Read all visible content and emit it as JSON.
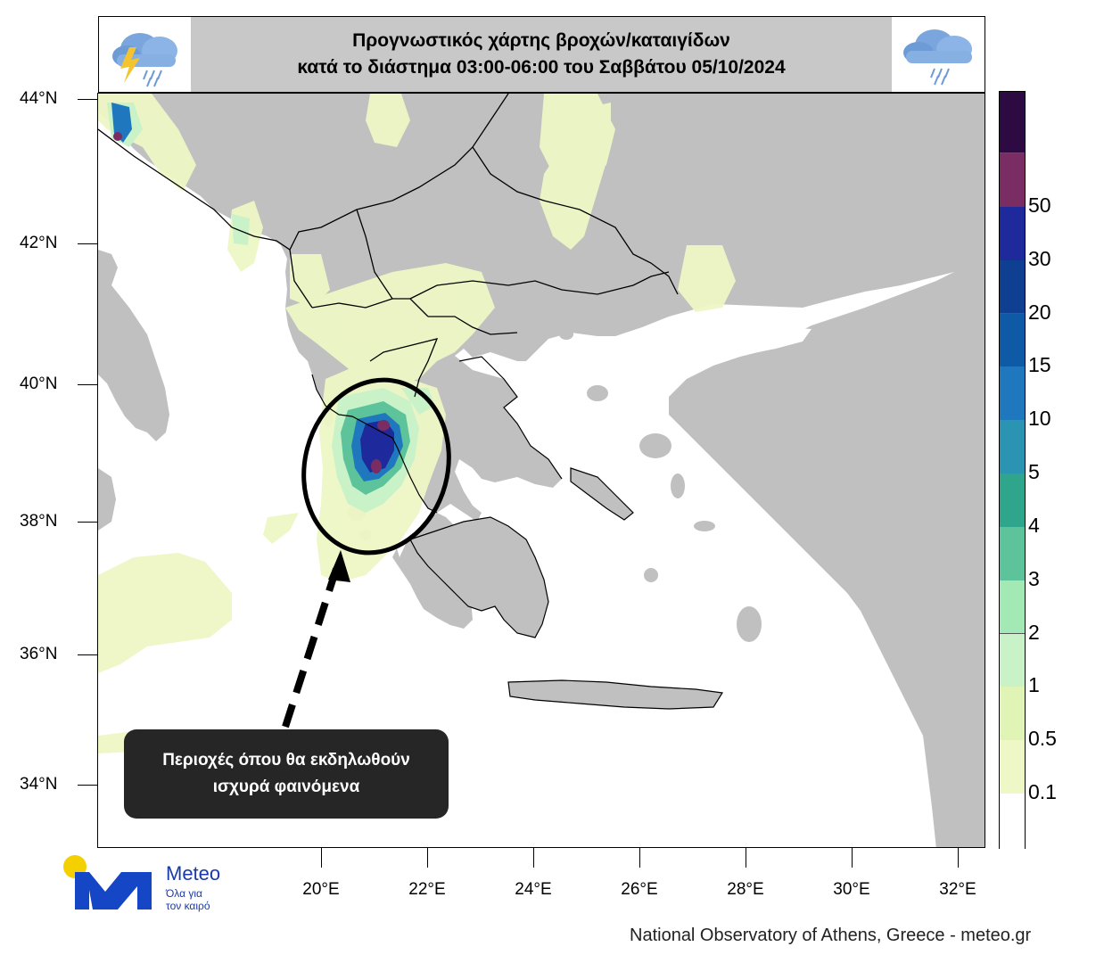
{
  "title": {
    "line1": "Προγνωστικός χάρτης βροχών/καταιγίδων",
    "line2": "κατά το διάστημα 03:00-06:00 του Σαββάτου 05/10/2024"
  },
  "icons": {
    "left": "thunderstorm-cloud-icon",
    "right": "rain-cloud-icon"
  },
  "axes": {
    "lat_labels": [
      "44°N",
      "42°N",
      "40°N",
      "38°N",
      "36°N",
      "34°N"
    ],
    "lon_labels": [
      "20°E",
      "22°E",
      "24°E",
      "26°E",
      "28°E",
      "30°E",
      "32°E"
    ]
  },
  "legend": {
    "unit": "",
    "levels": [
      "0.1",
      "0.5",
      "1",
      "2",
      "3",
      "4",
      "5",
      "10",
      "15",
      "20",
      "30",
      "50"
    ],
    "colors": [
      "#ffffff",
      "#eef7c6",
      "#e0f5b5",
      "#c9f2c9",
      "#a3e9b5",
      "#5cc39a",
      "#2fa68c",
      "#2b94b3",
      "#1f78bd",
      "#0f5aa6",
      "#0e3f90",
      "#1e2a9b",
      "#7a2d62",
      "#2e0a43"
    ]
  },
  "callout": {
    "line1": "Περιοχές όπου θα εκδηλωθούν",
    "line2": "ισχυρά φαινόμενα"
  },
  "branding": {
    "name": "Meteo",
    "tagline_line1": "Όλα για",
    "tagline_line2": "τον καιρό",
    "logo_icon": "meteo-m-logo-icon"
  },
  "credit": "National Observatory of Athens, Greece - meteo.gr",
  "colors": {
    "land": "#c0c0c0",
    "sea": "#ffffff",
    "title_bg": "#c8c8c8",
    "callout_bg": "#262626"
  }
}
